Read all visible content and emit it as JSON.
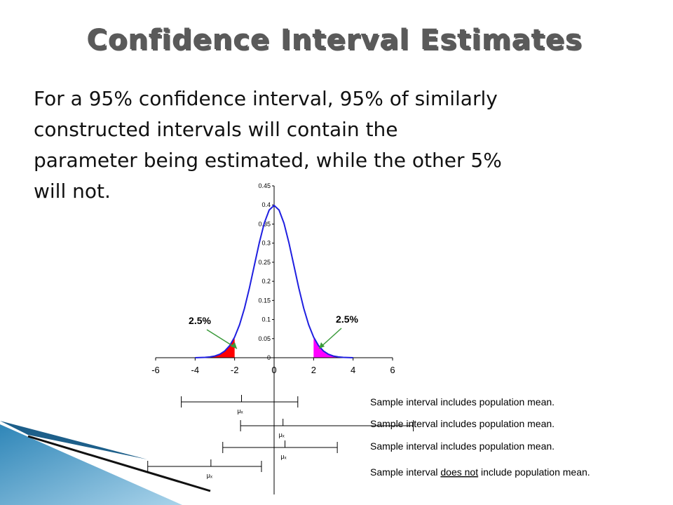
{
  "header": {
    "title": "Confidence Interval Estimates"
  },
  "body": {
    "lines": [
      "For a 95% confidence interval, 95% of similarly",
      "constructed intervals will contain the",
      "parameter being estimated, while the other 5%",
      "will not."
    ]
  },
  "chart_data": {
    "type": "line",
    "x": [
      -4,
      -3.75,
      -3.5,
      -3.25,
      -3,
      -2.75,
      -2.5,
      -2.25,
      -2,
      -1.75,
      -1.5,
      -1.25,
      -1,
      -0.75,
      -0.5,
      -0.25,
      0,
      0.25,
      0.5,
      0.75,
      1,
      1.25,
      1.5,
      1.75,
      2,
      2.25,
      2.5,
      2.75,
      3,
      3.25,
      3.5,
      3.75,
      4
    ],
    "series": [
      {
        "color": "#1f1fe0",
        "values": [
          0.0001,
          0.0004,
          0.0009,
          0.002,
          0.0044,
          0.0091,
          0.0175,
          0.0317,
          0.054,
          0.0863,
          0.1295,
          0.1826,
          0.242,
          0.3011,
          0.3521,
          0.3867,
          0.3989,
          0.3867,
          0.3521,
          0.3011,
          0.242,
          0.1826,
          0.1295,
          0.0863,
          0.054,
          0.0317,
          0.0175,
          0.0091,
          0.0044,
          0.002,
          0.0009,
          0.0004,
          0.0001
        ]
      }
    ],
    "xlim": [
      -6,
      6
    ],
    "xticks": [
      -6,
      -4,
      -2,
      0,
      2,
      4,
      6
    ],
    "ylim": [
      0,
      0.45
    ],
    "yticks": [
      0,
      0.05,
      0.1,
      0.15,
      0.2,
      0.25,
      0.3,
      0.35,
      0.4,
      0.45
    ],
    "tails": [
      {
        "label": "2.5%",
        "color": "#ff0000",
        "from": -4,
        "to": -2
      },
      {
        "label": "2.5%",
        "color": "#ff00ff",
        "from": 2,
        "to": 4
      }
    ],
    "intervals": [
      {
        "lower": -4.7,
        "upper": 1.2,
        "mean": -1.65,
        "mean_label": "μₓ",
        "text": [
          "Sample interval includes population mean."
        ]
      },
      {
        "lower": -1.7,
        "upper": 7.05,
        "mean": 0.45,
        "mean_label": "μₓ",
        "text": [
          "Sample interval includes population mean."
        ]
      },
      {
        "lower": -2.6,
        "upper": 3.2,
        "mean": 0.55,
        "mean_label": "μₓ",
        "text": [
          "Sample interval includes population mean."
        ]
      },
      {
        "lower": -6.4,
        "upper": -0.64,
        "mean": -3.2,
        "mean_label": "μₓ",
        "text": [
          "Sample interval ",
          "does not",
          " include population mean."
        ]
      }
    ]
  }
}
